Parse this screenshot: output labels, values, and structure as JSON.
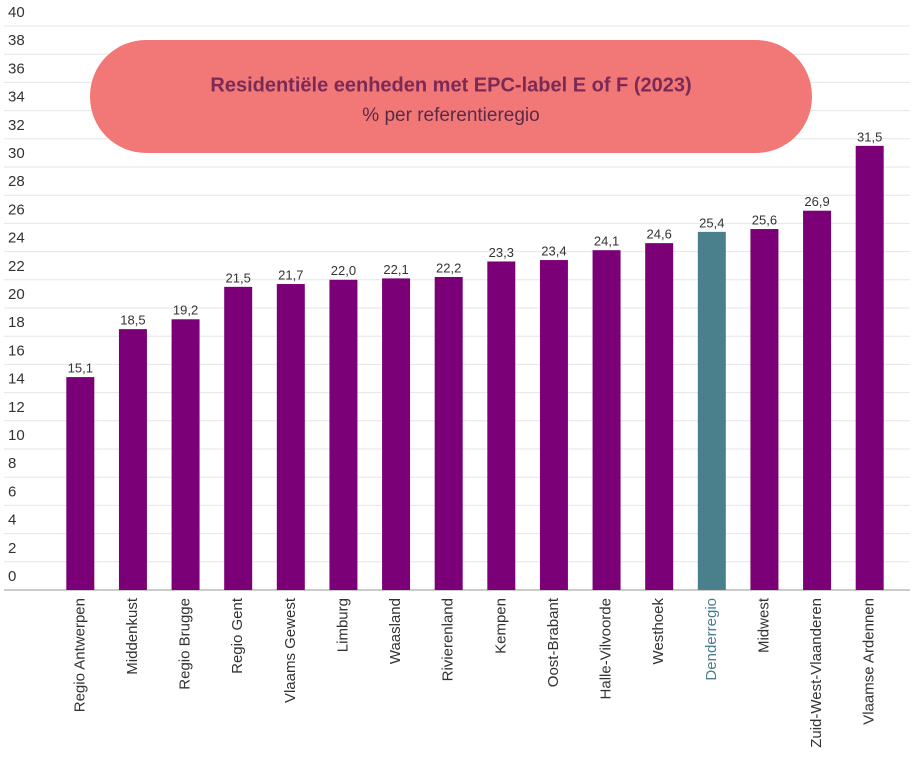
{
  "chart_data": {
    "type": "bar",
    "title": "Residentiële eenheden met EPC-label E of F (2023)",
    "subtitle": "% per referentieregio",
    "categories": [
      "Regio Antwerpen",
      "Middenkust",
      "Regio Brugge",
      "Regio Gent",
      "Vlaams Gewest",
      "Limburg",
      "Waasland",
      "Rivierenland",
      "Kempen",
      "Oost-Brabant",
      "Halle-Vilvoorde",
      "Westhoek",
      "Denderregio",
      "Midwest",
      "Zuid-West-Vlaanderen",
      "Vlaamse Ardennen"
    ],
    "values": [
      15.1,
      18.5,
      19.2,
      21.5,
      21.7,
      22.0,
      22.1,
      22.2,
      23.3,
      23.4,
      24.1,
      24.6,
      25.4,
      25.6,
      26.9,
      31.5
    ],
    "value_labels": [
      "15,1",
      "18,5",
      "19,2",
      "21,5",
      "21,7",
      "22,0",
      "22,1",
      "22,2",
      "23,3",
      "23,4",
      "24,1",
      "24,6",
      "25,4",
      "25,6",
      "26,9",
      "31,5"
    ],
    "color": "#7b0078",
    "colors": [
      "#7b0078",
      "#7b0078",
      "#7b0078",
      "#7b0078",
      "#7b0078",
      "#7b0078",
      "#7b0078",
      "#7b0078",
      "#7b0078",
      "#7b0078",
      "#7b0078",
      "#7b0078",
      "#4a7f8c",
      "#7b0078",
      "#7b0078",
      "#7b0078"
    ],
    "ylim": [
      0,
      40
    ],
    "yticks": [
      0,
      2,
      4,
      6,
      8,
      10,
      12,
      14,
      16,
      18,
      20,
      22,
      24,
      26,
      28,
      30,
      32,
      34,
      36,
      38,
      40
    ],
    "grid": true
  }
}
